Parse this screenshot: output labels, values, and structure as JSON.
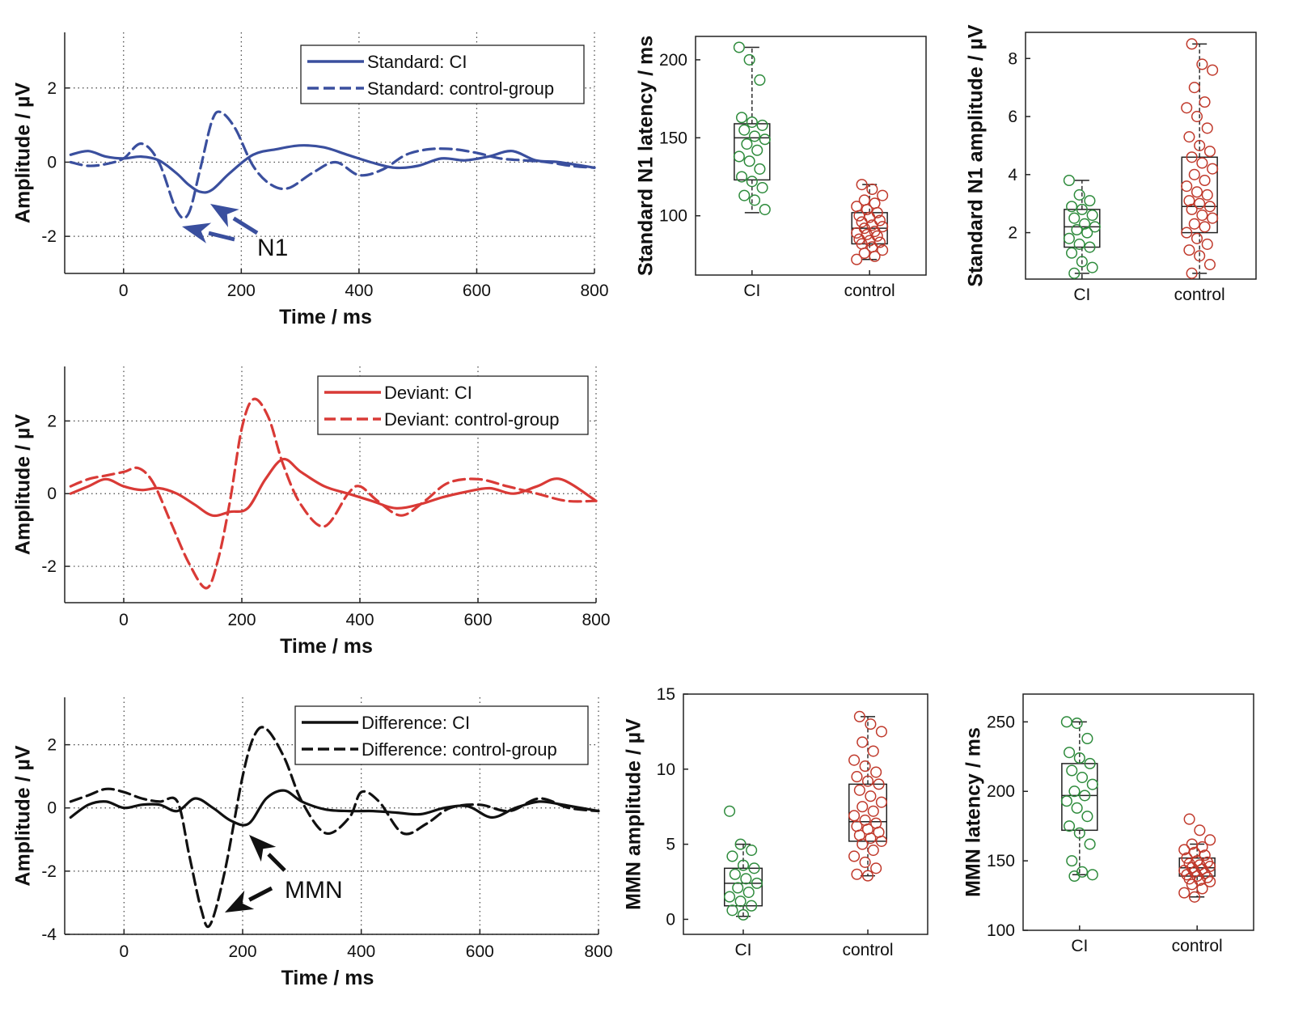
{
  "chart_data": [
    {
      "id": "standard-erp",
      "type": "line",
      "xlabel": "Time / ms",
      "ylabel": "Amplitude / µV",
      "xlim": [
        -100,
        800
      ],
      "ylim": [
        -3,
        3.5
      ],
      "xticks": [
        0,
        200,
        400,
        600,
        800
      ],
      "yticks": [
        -2,
        0,
        2
      ],
      "grid": true,
      "legend_position": "top-right",
      "color": "#3a4f9e",
      "series": [
        {
          "name": "Standard: CI",
          "style": "solid",
          "x": [
            -90,
            -60,
            -30,
            0,
            30,
            60,
            90,
            110,
            130,
            150,
            180,
            220,
            260,
            300,
            340,
            380,
            420,
            460,
            500,
            540,
            580,
            620,
            660,
            700,
            740,
            800
          ],
          "y": [
            0.2,
            0.3,
            0.15,
            0.1,
            0.15,
            0.05,
            -0.3,
            -0.6,
            -0.8,
            -0.75,
            -0.3,
            0.2,
            0.35,
            0.45,
            0.4,
            0.2,
            0.0,
            -0.15,
            -0.1,
            0.1,
            0.05,
            0.15,
            0.3,
            0.05,
            0.0,
            -0.15
          ]
        },
        {
          "name": "Standard: control-group",
          "style": "dashed",
          "x": [
            -90,
            -60,
            -30,
            0,
            30,
            60,
            90,
            110,
            130,
            150,
            165,
            190,
            220,
            250,
            280,
            320,
            360,
            400,
            440,
            480,
            520,
            560,
            600,
            640,
            680,
            720,
            760,
            800
          ],
          "y": [
            0.0,
            -0.1,
            -0.05,
            0.1,
            0.5,
            0.0,
            -1.3,
            -1.4,
            -0.2,
            1.1,
            1.35,
            0.9,
            -0.1,
            -0.6,
            -0.7,
            -0.3,
            0.0,
            -0.35,
            -0.2,
            0.2,
            0.35,
            0.35,
            0.25,
            0.1,
            0.05,
            0.0,
            -0.1,
            -0.15
          ]
        }
      ],
      "annotations": [
        {
          "label": "N1"
        }
      ]
    },
    {
      "id": "standard-n1-latency",
      "type": "box",
      "ylabel": "Standard N1 latency / ms",
      "categories": [
        "CI",
        "control"
      ],
      "ylim": [
        62,
        215
      ],
      "yticks": [
        100,
        150,
        200
      ],
      "colors": [
        "#2e8b3c",
        "#c0392b"
      ],
      "boxes": [
        {
          "whisker_low": 102,
          "q1": 123,
          "median": 150,
          "q3": 159,
          "whisker_high": 208
        },
        {
          "whisker_low": 72,
          "q1": 82,
          "median": 92,
          "q3": 102,
          "whisker_high": 120
        }
      ],
      "points": [
        [
          208,
          200,
          187,
          163,
          160,
          158,
          155,
          151,
          149,
          146,
          142,
          138,
          135,
          130,
          125,
          122,
          118,
          113,
          110,
          104
        ],
        [
          120,
          117,
          113,
          110,
          108,
          106,
          104,
          102,
          100,
          99,
          97,
          96,
          94,
          93,
          92,
          90,
          89,
          88,
          87,
          85,
          84,
          83,
          82,
          80,
          78,
          76,
          74,
          72
        ]
      ]
    },
    {
      "id": "standard-n1-amplitude",
      "type": "box",
      "ylabel": "Standard N1 amplitude / µV",
      "categories": [
        "CI",
        "control"
      ],
      "ylim": [
        0.4,
        8.9
      ],
      "yticks": [
        2,
        4,
        6,
        8
      ],
      "colors": [
        "#2e8b3c",
        "#c0392b"
      ],
      "boxes": [
        {
          "whisker_low": 0.6,
          "q1": 1.5,
          "median": 2.2,
          "q3": 2.8,
          "whisker_high": 3.8
        },
        {
          "whisker_low": 0.6,
          "q1": 2.0,
          "median": 2.9,
          "q3": 4.6,
          "whisker_high": 8.5
        }
      ],
      "points": [
        [
          3.8,
          3.3,
          3.1,
          2.9,
          2.8,
          2.6,
          2.5,
          2.3,
          2.2,
          2.1,
          2.0,
          1.8,
          1.6,
          1.5,
          1.3,
          1.0,
          0.8,
          0.6
        ],
        [
          8.5,
          7.8,
          7.6,
          7.0,
          6.5,
          6.3,
          6.0,
          5.6,
          5.3,
          5.0,
          4.8,
          4.6,
          4.4,
          4.2,
          4.0,
          3.8,
          3.6,
          3.4,
          3.3,
          3.1,
          3.0,
          2.9,
          2.8,
          2.6,
          2.5,
          2.3,
          2.2,
          2.0,
          1.8,
          1.6,
          1.4,
          1.2,
          0.9,
          0.6
        ]
      ]
    },
    {
      "id": "deviant-erp",
      "type": "line",
      "xlabel": "Time / ms",
      "ylabel": "Amplitude / µV",
      "xlim": [
        -100,
        800
      ],
      "ylim": [
        -3,
        3.5
      ],
      "xticks": [
        0,
        200,
        400,
        600,
        800
      ],
      "yticks": [
        -2,
        0,
        2
      ],
      "grid": true,
      "legend_position": "top-right",
      "color": "#d93a36",
      "series": [
        {
          "name": "Deviant: CI",
          "style": "solid",
          "x": [
            -90,
            -60,
            -30,
            0,
            30,
            60,
            90,
            120,
            150,
            180,
            210,
            240,
            270,
            300,
            340,
            380,
            420,
            460,
            500,
            540,
            580,
            620,
            660,
            700,
            740,
            800
          ],
          "y": [
            0.0,
            0.2,
            0.4,
            0.2,
            0.1,
            0.15,
            0.0,
            -0.3,
            -0.6,
            -0.5,
            -0.4,
            0.4,
            0.95,
            0.6,
            0.2,
            0.0,
            -0.2,
            -0.4,
            -0.3,
            -0.1,
            0.05,
            0.15,
            0.0,
            0.2,
            0.4,
            -0.2
          ]
        },
        {
          "name": "Deviant: control-group",
          "style": "dashed",
          "x": [
            -90,
            -60,
            -30,
            0,
            25,
            50,
            80,
            110,
            140,
            160,
            180,
            200,
            220,
            245,
            270,
            300,
            340,
            380,
            400,
            430,
            470,
            510,
            550,
            600,
            650,
            700,
            750,
            800
          ],
          "y": [
            0.2,
            0.4,
            0.5,
            0.6,
            0.7,
            0.3,
            -0.8,
            -1.9,
            -2.6,
            -1.8,
            -0.2,
            1.8,
            2.6,
            2.1,
            0.8,
            -0.3,
            -0.9,
            0.0,
            0.2,
            -0.2,
            -0.6,
            -0.2,
            0.3,
            0.4,
            0.2,
            0.0,
            -0.2,
            -0.2
          ]
        }
      ]
    },
    {
      "id": "difference-erp",
      "type": "line",
      "xlabel": "Time / ms",
      "ylabel": "Amplitude / µV",
      "xlim": [
        -100,
        800
      ],
      "ylim": [
        -4,
        3.5
      ],
      "xticks": [
        0,
        200,
        400,
        600,
        800
      ],
      "yticks": [
        -4,
        -2,
        0,
        2
      ],
      "grid": true,
      "legend_position": "top-right",
      "color": "#111111",
      "series": [
        {
          "name": "Difference: CI",
          "style": "solid",
          "x": [
            -90,
            -60,
            -30,
            0,
            30,
            60,
            90,
            120,
            150,
            180,
            210,
            240,
            270,
            300,
            340,
            380,
            420,
            460,
            500,
            540,
            580,
            620,
            660,
            700,
            740,
            800
          ],
          "y": [
            -0.3,
            0.1,
            0.2,
            0.0,
            0.1,
            0.1,
            -0.1,
            0.3,
            0.0,
            -0.4,
            -0.5,
            0.3,
            0.55,
            0.2,
            -0.05,
            -0.1,
            -0.1,
            -0.15,
            -0.2,
            0.0,
            0.05,
            -0.3,
            0.0,
            0.2,
            0.1,
            -0.1
          ]
        },
        {
          "name": "Difference: control-group",
          "style": "dashed",
          "x": [
            -90,
            -60,
            -30,
            0,
            30,
            60,
            90,
            110,
            130,
            145,
            170,
            200,
            220,
            240,
            270,
            300,
            340,
            380,
            400,
            430,
            470,
            510,
            550,
            600,
            650,
            700,
            750,
            800
          ],
          "y": [
            0.2,
            0.4,
            0.6,
            0.5,
            0.3,
            0.2,
            0.2,
            -1.5,
            -3.2,
            -3.7,
            -2.0,
            1.0,
            2.3,
            2.5,
            1.6,
            0.2,
            -0.8,
            -0.3,
            0.5,
            0.2,
            -0.8,
            -0.5,
            0.0,
            0.1,
            -0.1,
            0.3,
            0.0,
            -0.1
          ]
        }
      ],
      "annotations": [
        {
          "label": "MMN"
        }
      ]
    },
    {
      "id": "mmn-amplitude",
      "type": "box",
      "ylabel": "MMN amplitude / µV",
      "categories": [
        "CI",
        "control"
      ],
      "ylim": [
        -1,
        15
      ],
      "yticks": [
        0,
        5,
        10,
        15
      ],
      "colors": [
        "#2e8b3c",
        "#c0392b"
      ],
      "boxes": [
        {
          "whisker_low": 0.2,
          "q1": 0.9,
          "median": 2.4,
          "q3": 3.4,
          "whisker_high": 5.0
        },
        {
          "whisker_low": 2.9,
          "q1": 5.2,
          "median": 6.5,
          "q3": 9.0,
          "whisker_high": 13.5
        }
      ],
      "points": [
        [
          7.2,
          5.0,
          4.6,
          4.2,
          3.6,
          3.4,
          3.0,
          2.7,
          2.4,
          2.1,
          1.8,
          1.5,
          1.2,
          0.9,
          0.6,
          0.3
        ],
        [
          13.5,
          13.0,
          12.5,
          11.8,
          11.2,
          10.6,
          10.2,
          9.8,
          9.5,
          9.2,
          9.0,
          8.6,
          8.2,
          7.8,
          7.5,
          7.2,
          6.9,
          6.6,
          6.4,
          6.2,
          6.0,
          5.8,
          5.6,
          5.4,
          5.2,
          5.0,
          4.6,
          4.2,
          3.8,
          3.4,
          3.0,
          2.9
        ]
      ]
    },
    {
      "id": "mmn-latency",
      "type": "box",
      "ylabel": "MMN latency / ms",
      "categories": [
        "CI",
        "control"
      ],
      "ylim": [
        100,
        270
      ],
      "yticks": [
        100,
        150,
        200,
        250
      ],
      "colors": [
        "#2e8b3c",
        "#c0392b"
      ],
      "boxes": [
        {
          "whisker_low": 140,
          "q1": 172,
          "median": 197,
          "q3": 220,
          "whisker_high": 250
        },
        {
          "whisker_low": 124,
          "q1": 139,
          "median": 145,
          "q3": 152,
          "whisker_high": 162
        }
      ],
      "points": [
        [
          250,
          249,
          238,
          228,
          224,
          220,
          215,
          210,
          205,
          200,
          197,
          193,
          188,
          182,
          175,
          170,
          162,
          150,
          142,
          140,
          139
        ],
        [
          180,
          172,
          165,
          162,
          160,
          158,
          156,
          154,
          152,
          150,
          149,
          148,
          147,
          146,
          145,
          144,
          143,
          142,
          141,
          140,
          139,
          138,
          137,
          136,
          135,
          133,
          130,
          127,
          124
        ]
      ]
    }
  ]
}
